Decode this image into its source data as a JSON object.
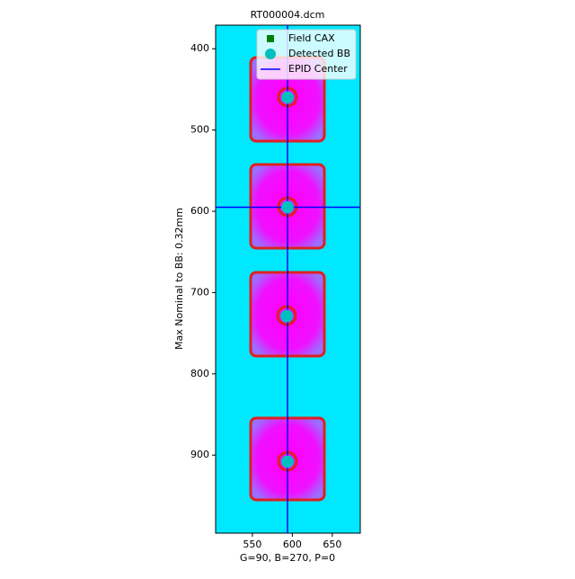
{
  "chart_data": {
    "type": "scatter",
    "title": "RT000004.dcm",
    "x_label": "G=90, B=270, P=0",
    "y_label": "Max Nominal to BB: 0.32mm",
    "xlim": [
      504,
      685
    ],
    "ylim": [
      996,
      371
    ],
    "xticks": [
      550,
      600,
      650
    ],
    "yticks": [
      400,
      500,
      600,
      700,
      800,
      900
    ],
    "series": [
      {
        "name": "Field CAX",
        "color": "green",
        "marker": "square",
        "x": [
          594,
          594,
          594,
          594
        ],
        "y": [
          460,
          595,
          729,
          908
        ]
      },
      {
        "name": "Detected BB",
        "color": "#00bfbf",
        "marker": "circle",
        "x": [
          594,
          594,
          593,
          594
        ],
        "y": [
          460,
          595,
          729,
          908
        ]
      }
    ],
    "epid_center": {
      "name": "EPID Center",
      "color": "blue",
      "x": 594,
      "y": 595
    },
    "legend": "upper right"
  }
}
